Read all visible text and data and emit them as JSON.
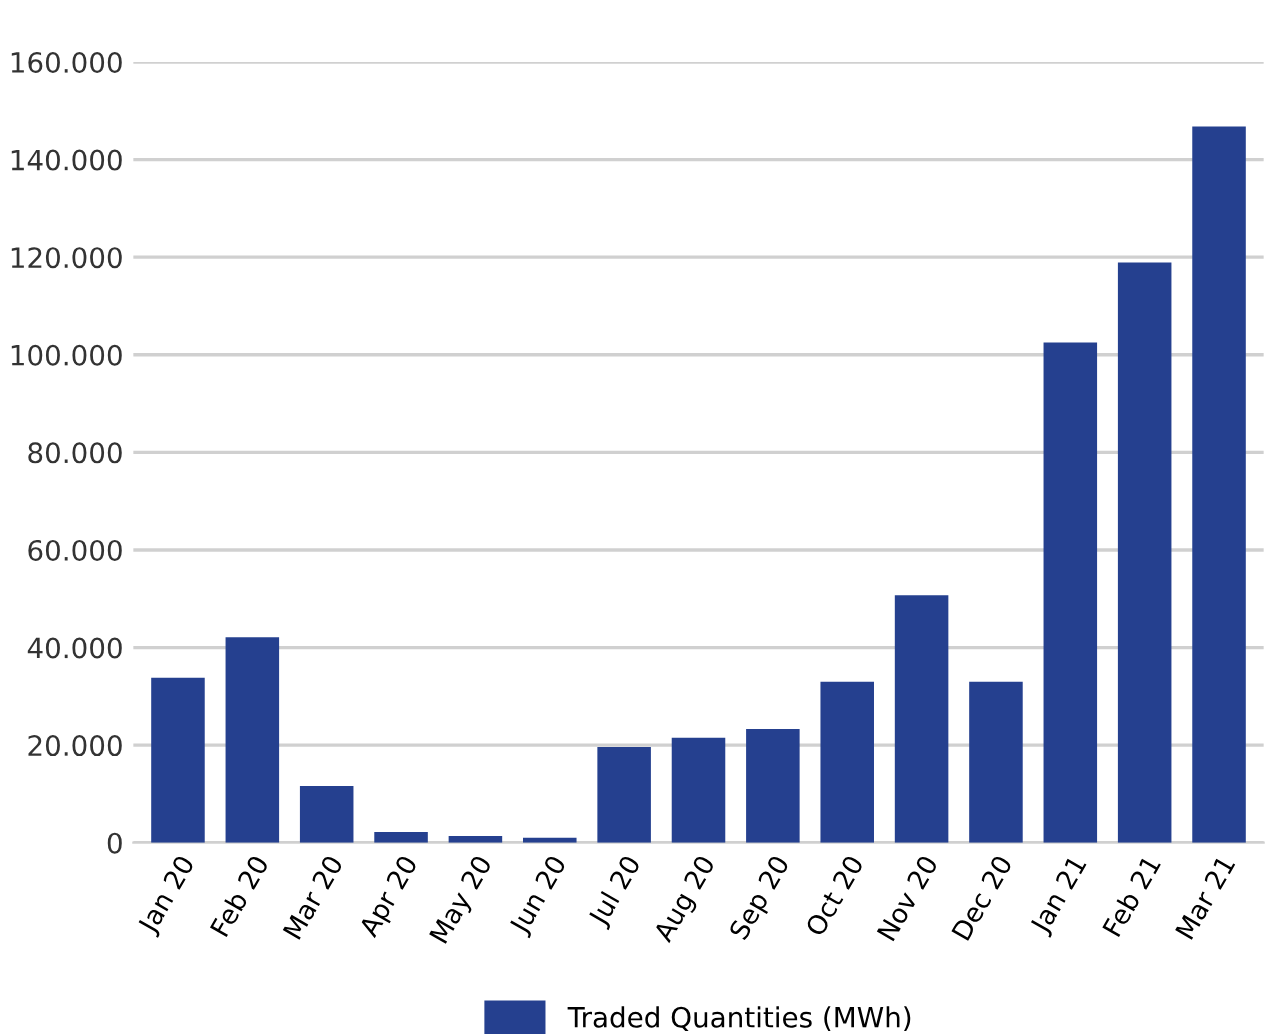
{
  "chart_data": {
    "type": "bar",
    "categories": [
      "Jan 20",
      "Feb 20",
      "Mar 20",
      "Apr 20",
      "May 20",
      "Jun 20",
      "Jul 20",
      "Aug 20",
      "Sep 20",
      "Oct 20",
      "Nov 20",
      "Dec 20",
      "Jan 21",
      "Feb 21",
      "Mar 21"
    ],
    "series": [
      {
        "name": "Traded Quantities (MWh)",
        "color": "#25408f",
        "values": [
          33800,
          42100,
          11600,
          2200,
          1400,
          1000,
          19600,
          21500,
          23300,
          33000,
          50700,
          33000,
          102500,
          118900,
          146800
        ]
      }
    ],
    "ylim": [
      0,
      160000
    ],
    "yticks": [
      {
        "value": 0,
        "label": "0"
      },
      {
        "value": 20000,
        "label": "20.000"
      },
      {
        "value": 40000,
        "label": "40.000"
      },
      {
        "value": 60000,
        "label": "60.000"
      },
      {
        "value": 80000,
        "label": "80.000"
      },
      {
        "value": 100000,
        "label": "100.000"
      },
      {
        "value": 120000,
        "label": "120.000"
      },
      {
        "value": 140000,
        "label": "140.000"
      },
      {
        "value": 160000,
        "label": "160.000"
      }
    ],
    "grid": "y",
    "legend": "bottom"
  }
}
